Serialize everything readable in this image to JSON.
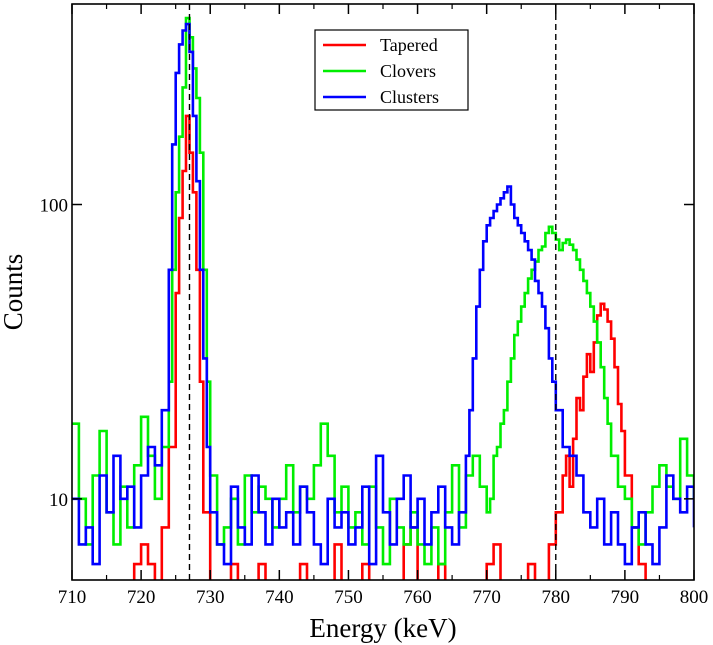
{
  "chart_data": {
    "type": "line",
    "style": "step-histogram",
    "title": "",
    "xlabel": "Energy (keV)",
    "ylabel": "Counts",
    "xlim": [
      710,
      800
    ],
    "ylim": [
      5.3,
      480
    ],
    "yscale": "log",
    "grid": false,
    "legend_position": "top-center",
    "xticks": [
      710,
      720,
      730,
      740,
      750,
      760,
      770,
      780,
      790,
      800
    ],
    "xtick_labels": [
      "710",
      "720",
      "730",
      "740",
      "750",
      "760",
      "770",
      "780",
      "790",
      "800"
    ],
    "yticks": [
      10,
      100
    ],
    "ytick_labels": [
      "10",
      "100"
    ],
    "reference_lines": [
      727,
      780
    ],
    "bin_width": 0.5,
    "series": [
      {
        "name": "Tapered",
        "color": "#ff0000",
        "points": [
          [
            710,
            0
          ],
          [
            716,
            5
          ],
          [
            717,
            0
          ],
          [
            719,
            6
          ],
          [
            720,
            7
          ],
          [
            721,
            6
          ],
          [
            722,
            0
          ],
          [
            723,
            8
          ],
          [
            724,
            15
          ],
          [
            725,
            50
          ],
          [
            725.5,
            90
          ],
          [
            726,
            130
          ],
          [
            726.5,
            200
          ],
          [
            727,
            150
          ],
          [
            727.5,
            110
          ],
          [
            728,
            60
          ],
          [
            728.5,
            25
          ],
          [
            729,
            9
          ],
          [
            730,
            0
          ],
          [
            733,
            6
          ],
          [
            734,
            0
          ],
          [
            737,
            6
          ],
          [
            738,
            0
          ],
          [
            743,
            6
          ],
          [
            744,
            0
          ],
          [
            748,
            7
          ],
          [
            749,
            0
          ],
          [
            752,
            6
          ],
          [
            753,
            0
          ],
          [
            758,
            7
          ],
          [
            759,
            8
          ],
          [
            760,
            0
          ],
          [
            763,
            6
          ],
          [
            764,
            0
          ],
          [
            770,
            6
          ],
          [
            771,
            7
          ],
          [
            772,
            0
          ],
          [
            776,
            6
          ],
          [
            777,
            0
          ],
          [
            779,
            7
          ],
          [
            780,
            9
          ],
          [
            781,
            12
          ],
          [
            781.5,
            14
          ],
          [
            782,
            11
          ],
          [
            782.5,
            16
          ],
          [
            783,
            22
          ],
          [
            783.5,
            20
          ],
          [
            784,
            26
          ],
          [
            784.5,
            31
          ],
          [
            785,
            27
          ],
          [
            785.5,
            34
          ],
          [
            786,
            42
          ],
          [
            786.5,
            46
          ],
          [
            787,
            44
          ],
          [
            787.5,
            40
          ],
          [
            788,
            35
          ],
          [
            788.5,
            28
          ],
          [
            789,
            21
          ],
          [
            789.5,
            17
          ],
          [
            790,
            12
          ],
          [
            791,
            8
          ],
          [
            792,
            6
          ],
          [
            793,
            0
          ],
          [
            800,
            0
          ]
        ]
      },
      {
        "name": "Clovers",
        "color": "#00ee00",
        "points": [
          [
            710,
            18
          ],
          [
            711,
            10
          ],
          [
            712,
            7
          ],
          [
            713,
            12
          ],
          [
            714,
            17
          ],
          [
            715,
            9
          ],
          [
            716,
            7
          ],
          [
            717,
            11
          ],
          [
            718,
            8
          ],
          [
            719,
            13
          ],
          [
            720,
            19
          ],
          [
            721,
            14
          ],
          [
            722,
            10
          ],
          [
            723,
            15
          ],
          [
            724,
            25
          ],
          [
            724.5,
            60
          ],
          [
            725,
            110
          ],
          [
            725.5,
            170
          ],
          [
            726,
            250
          ],
          [
            726.5,
            430
          ],
          [
            727,
            370
          ],
          [
            727.5,
            290
          ],
          [
            728,
            230
          ],
          [
            728.5,
            150
          ],
          [
            729,
            60
          ],
          [
            729.5,
            25
          ],
          [
            730,
            12
          ],
          [
            731,
            7
          ],
          [
            732,
            8
          ],
          [
            733,
            10
          ],
          [
            734,
            7
          ],
          [
            735,
            12
          ],
          [
            736,
            9
          ],
          [
            737,
            11
          ],
          [
            738,
            10
          ],
          [
            739,
            8
          ],
          [
            740,
            10
          ],
          [
            741,
            13
          ],
          [
            742,
            9
          ],
          [
            743,
            11
          ],
          [
            744,
            10
          ],
          [
            745,
            13
          ],
          [
            746,
            18
          ],
          [
            747,
            14
          ],
          [
            748,
            9
          ],
          [
            749,
            11
          ],
          [
            750,
            8
          ],
          [
            751,
            9
          ],
          [
            752,
            7
          ],
          [
            753,
            11
          ],
          [
            754,
            8
          ],
          [
            755,
            6
          ],
          [
            756,
            10
          ],
          [
            757,
            8
          ],
          [
            758,
            7
          ],
          [
            759,
            9
          ],
          [
            760,
            7
          ],
          [
            761,
            6
          ],
          [
            762,
            8
          ],
          [
            763,
            6
          ],
          [
            764,
            9
          ],
          [
            765,
            13
          ],
          [
            766,
            8
          ],
          [
            767,
            12
          ],
          [
            768,
            14
          ],
          [
            769,
            11
          ],
          [
            770,
            9
          ],
          [
            770.5,
            10
          ],
          [
            771,
            14
          ],
          [
            771.5,
            15
          ],
          [
            772,
            18
          ],
          [
            772.5,
            20
          ],
          [
            773,
            25
          ],
          [
            773.5,
            30
          ],
          [
            774,
            36
          ],
          [
            774.5,
            40
          ],
          [
            775,
            45
          ],
          [
            775.5,
            50
          ],
          [
            776,
            56
          ],
          [
            776.5,
            60
          ],
          [
            777,
            64
          ],
          [
            777.5,
            70
          ],
          [
            778,
            72
          ],
          [
            778.5,
            80
          ],
          [
            779,
            84
          ],
          [
            779.5,
            80
          ],
          [
            780,
            76
          ],
          [
            780.5,
            70
          ],
          [
            781,
            74
          ],
          [
            781.5,
            76
          ],
          [
            782,
            73
          ],
          [
            782.5,
            70
          ],
          [
            783,
            65
          ],
          [
            783.5,
            60
          ],
          [
            784,
            55
          ],
          [
            784.5,
            50
          ],
          [
            785,
            45
          ],
          [
            785.5,
            40
          ],
          [
            786,
            34
          ],
          [
            786.5,
            28
          ],
          [
            787,
            22
          ],
          [
            787.5,
            18
          ],
          [
            788,
            14
          ],
          [
            789,
            11
          ],
          [
            790,
            10
          ],
          [
            791,
            8
          ],
          [
            792,
            7
          ],
          [
            793,
            9
          ],
          [
            794,
            11
          ],
          [
            795,
            13
          ],
          [
            796,
            11
          ],
          [
            797,
            10
          ],
          [
            798,
            16
          ],
          [
            799,
            12
          ],
          [
            800,
            10
          ]
        ]
      },
      {
        "name": "Clusters",
        "color": "#0000ff",
        "points": [
          [
            710,
            10
          ],
          [
            711,
            7
          ],
          [
            712,
            8
          ],
          [
            713,
            6
          ],
          [
            714,
            12
          ],
          [
            715,
            9
          ],
          [
            716,
            14
          ],
          [
            717,
            10
          ],
          [
            718,
            11
          ],
          [
            719,
            8
          ],
          [
            720,
            12
          ],
          [
            721,
            15
          ],
          [
            722,
            13
          ],
          [
            723,
            20
          ],
          [
            724,
            60
          ],
          [
            724.5,
            160
          ],
          [
            725,
            280
          ],
          [
            725.5,
            350
          ],
          [
            726,
            390
          ],
          [
            726.5,
            410
          ],
          [
            727,
            330
          ],
          [
            727.5,
            200
          ],
          [
            728,
            120
          ],
          [
            728.5,
            60
          ],
          [
            729,
            30
          ],
          [
            729.5,
            15
          ],
          [
            730,
            9
          ],
          [
            731,
            7
          ],
          [
            732,
            6
          ],
          [
            733,
            11
          ],
          [
            734,
            8
          ],
          [
            735,
            7
          ],
          [
            736,
            12
          ],
          [
            737,
            9
          ],
          [
            738,
            7
          ],
          [
            739,
            10
          ],
          [
            740,
            8
          ],
          [
            741,
            9
          ],
          [
            742,
            7
          ],
          [
            743,
            11
          ],
          [
            744,
            9
          ],
          [
            745,
            7
          ],
          [
            746,
            6
          ],
          [
            747,
            10
          ],
          [
            748,
            8
          ],
          [
            749,
            9
          ],
          [
            750,
            7
          ],
          [
            751,
            8
          ],
          [
            752,
            11
          ],
          [
            753,
            6
          ],
          [
            754,
            14
          ],
          [
            755,
            9
          ],
          [
            756,
            7
          ],
          [
            757,
            10
          ],
          [
            758,
            12
          ],
          [
            759,
            8
          ],
          [
            760,
            10
          ],
          [
            761,
            7
          ],
          [
            762,
            9
          ],
          [
            763,
            11
          ],
          [
            764,
            8
          ],
          [
            765,
            7
          ],
          [
            766,
            9
          ],
          [
            767,
            14
          ],
          [
            767.5,
            20
          ],
          [
            768,
            30
          ],
          [
            768.5,
            45
          ],
          [
            769,
            60
          ],
          [
            769.5,
            75
          ],
          [
            770,
            85
          ],
          [
            770.5,
            90
          ],
          [
            771,
            95
          ],
          [
            771.5,
            100
          ],
          [
            772,
            105
          ],
          [
            772.5,
            110
          ],
          [
            773,
            115
          ],
          [
            773.5,
            100
          ],
          [
            774,
            90
          ],
          [
            774.5,
            85
          ],
          [
            775,
            80
          ],
          [
            775.5,
            75
          ],
          [
            776,
            70
          ],
          [
            776.5,
            65
          ],
          [
            777,
            55
          ],
          [
            777.5,
            50
          ],
          [
            778,
            45
          ],
          [
            778.5,
            38
          ],
          [
            779,
            30
          ],
          [
            779.5,
            25
          ],
          [
            780,
            20
          ],
          [
            781,
            15
          ],
          [
            782,
            14
          ],
          [
            783,
            12
          ],
          [
            784,
            9
          ],
          [
            785,
            8
          ],
          [
            786,
            10
          ],
          [
            787,
            7
          ],
          [
            788,
            9
          ],
          [
            789,
            7
          ],
          [
            790,
            6
          ],
          [
            791,
            8
          ],
          [
            792,
            9
          ],
          [
            793,
            7
          ],
          [
            794,
            6
          ],
          [
            795,
            8
          ],
          [
            796,
            12
          ],
          [
            797,
            10
          ],
          [
            798,
            9
          ],
          [
            799,
            11
          ],
          [
            800,
            8
          ]
        ]
      }
    ]
  }
}
